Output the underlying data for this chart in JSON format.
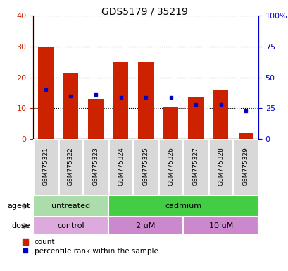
{
  "title": "GDS5179 / 35219",
  "samples": [
    "GSM775321",
    "GSM775322",
    "GSM775323",
    "GSM775324",
    "GSM775325",
    "GSM775326",
    "GSM775327",
    "GSM775328",
    "GSM775329"
  ],
  "counts": [
    30,
    21.5,
    13,
    25,
    25,
    10.5,
    13.5,
    16,
    2
  ],
  "percentiles": [
    40,
    35,
    36,
    34,
    34,
    34,
    28,
    28,
    23
  ],
  "bar_color": "#cc2200",
  "dot_color": "#0000cc",
  "ylim_left": [
    0,
    40
  ],
  "ylim_right": [
    0,
    100
  ],
  "yticks_left": [
    0,
    10,
    20,
    30,
    40
  ],
  "yticks_right": [
    0,
    25,
    50,
    75,
    100
  ],
  "agent_groups": [
    {
      "label": "untreated",
      "start": 0,
      "end": 3,
      "color": "#aaddaa"
    },
    {
      "label": "cadmium",
      "start": 3,
      "end": 9,
      "color": "#44cc44"
    }
  ],
  "dose_groups": [
    {
      "label": "control",
      "start": 0,
      "end": 3,
      "color": "#ddaadd"
    },
    {
      "label": "2 uM",
      "start": 3,
      "end": 6,
      "color": "#cc88cc"
    },
    {
      "label": "10 uM",
      "start": 6,
      "end": 9,
      "color": "#cc88cc"
    }
  ],
  "legend_count_color": "#cc2200",
  "legend_dot_color": "#0000cc",
  "tick_label_color_left": "#cc2200",
  "tick_label_color_right": "#0000cc",
  "xtick_bg_color": "#d8d8d8",
  "xtick_border_color": "#ffffff"
}
